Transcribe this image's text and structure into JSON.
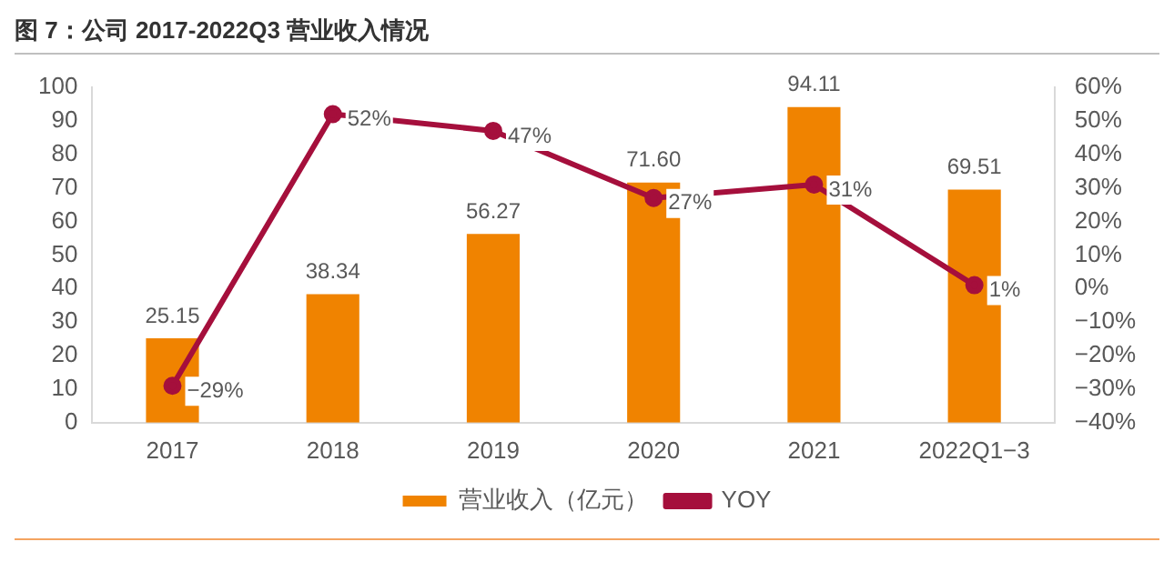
{
  "chart_data": {
    "type": "bar",
    "title": "图 7：公司 2017-2022Q3 营业收入情况",
    "categories": [
      "2017",
      "2018",
      "2019",
      "2020",
      "2021",
      "2022Q1−3"
    ],
    "series": [
      {
        "name": "营业收入（亿元）",
        "color": "#f08300",
        "values": [
          25.15,
          38.34,
          56.27,
          71.6,
          94.11,
          69.51
        ],
        "value_labels": [
          "25.15",
          "38.34",
          "56.27",
          "71.60",
          "94.11",
          "69.51"
        ]
      },
      {
        "name": "YOY",
        "type": "line",
        "axis": "y2",
        "color": "#a50f3c",
        "marker": "circle",
        "values": [
          -29,
          52,
          47,
          27,
          31,
          1
        ],
        "value_labels": [
          "−29%",
          "52%",
          "47%",
          "27%",
          "31%",
          "1%"
        ]
      }
    ],
    "ylim": [
      0,
      100
    ],
    "yticks": [
      0,
      10,
      20,
      30,
      40,
      50,
      60,
      70,
      80,
      90,
      100
    ],
    "y2lim": [
      -40,
      60
    ],
    "y2ticks": [
      {
        "value": -40,
        "label": "−40%"
      },
      {
        "value": -30,
        "label": "−30%"
      },
      {
        "value": -20,
        "label": "−20%"
      },
      {
        "value": -10,
        "label": "−10%"
      },
      {
        "value": 0,
        "label": "0%"
      },
      {
        "value": 10,
        "label": "10%"
      },
      {
        "value": 20,
        "label": "20%"
      },
      {
        "value": 30,
        "label": "30%"
      },
      {
        "value": 40,
        "label": "40%"
      },
      {
        "value": 50,
        "label": "50%"
      },
      {
        "value": 60,
        "label": "60%"
      }
    ],
    "grid": false,
    "legend": "bottom"
  }
}
